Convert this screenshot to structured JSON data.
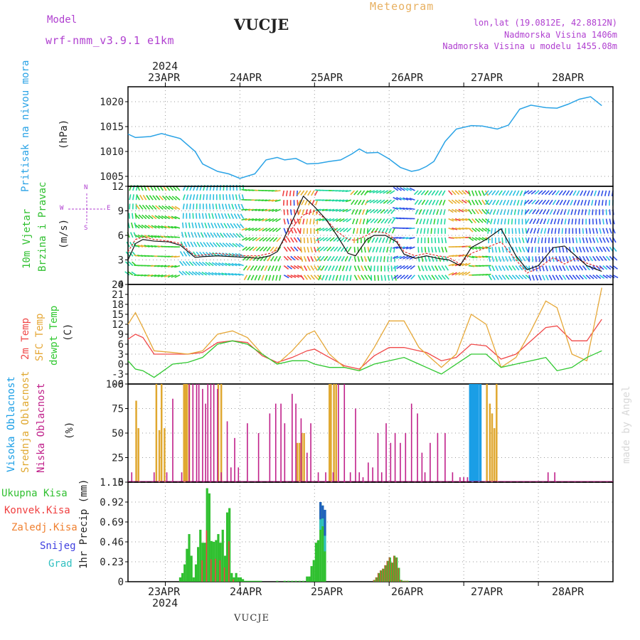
{
  "header": {
    "model_label": "Model",
    "model_name": "wrf-nmm_v3.9.1 e1km",
    "title": "VUCJE",
    "meteogram": "Meteogram",
    "lonlat": "lon,lat (19.0812E, 42.8812N)",
    "elevation": "Nadmorska Visina 1406m",
    "model_elevation": "Nadmorska Visina u modelu 1455.08m",
    "bottom_station": "VUCJE",
    "watermark": "made by Angel"
  },
  "colors": {
    "pressure": "#2aa3e6",
    "temp2m": "#f04848",
    "sfc": "#e6a838",
    "dew": "#30c830",
    "high_cloud": "#1a9ee6",
    "mid_cloud": "#e0a830",
    "low_cloud": "#c0208a",
    "precip_total": "#30c030",
    "precip_conv": "#f04040",
    "precip_frozen": "#f08030",
    "snow": "#4040e0",
    "hail": "#30c0c0",
    "magenta": "#b040d0",
    "orange": "#e8b060"
  },
  "chart_data": [
    {
      "type": "line",
      "panel": "pressure",
      "ylabel": "Pritisak na nivou mora",
      "unit": "(hPa)",
      "ylim": [
        1003,
        1023
      ],
      "yticks": [
        1005,
        1010,
        1015,
        1020
      ],
      "x_day": [
        0,
        0.1,
        0.3,
        0.45,
        0.55,
        0.7,
        0.9,
        1.0,
        1.2,
        1.35,
        1.5,
        1.7,
        1.85,
        2.0,
        2.1,
        2.25,
        2.4,
        2.55,
        2.7,
        2.85,
        3.0,
        3.1,
        3.2,
        3.35,
        3.5,
        3.65,
        3.8,
        3.9,
        4.0,
        4.1,
        4.25,
        4.4,
        4.6,
        4.75,
        4.95,
        5.1,
        5.25,
        5.4,
        5.6,
        5.75,
        5.9,
        6.05,
        6.2,
        6.35
      ],
      "values": [
        1013.5,
        1012.8,
        1013,
        1013.6,
        1013.2,
        1012.6,
        1010,
        1007.5,
        1006,
        1005.5,
        1004.6,
        1005.5,
        1008.3,
        1008.8,
        1008.3,
        1008.6,
        1007.5,
        1007.6,
        1008,
        1008.3,
        1009.5,
        1010.5,
        1009.7,
        1009.8,
        1008.5,
        1006.8,
        1006,
        1006.3,
        1007,
        1008,
        1012,
        1014.5,
        1015.2,
        1015.1,
        1014.5,
        1015.3,
        1018.5,
        1019.3,
        1018.8,
        1018.7,
        1019.5,
        1020.5,
        1021,
        1019.2
      ],
      "grid": true
    },
    {
      "type": "vector",
      "panel": "wind",
      "ylabel": [
        "10m Vjetar",
        "Brzina i Pravac"
      ],
      "unit": "(m/s)",
      "compass": [
        "N",
        "E",
        "S",
        "W"
      ],
      "ylim": [
        0,
        12
      ],
      "yticks": [
        0,
        3,
        6,
        9,
        12
      ],
      "series": [
        {
          "name": "red",
          "x_day": [
            0,
            0.1,
            0.2,
            0.35,
            0.55,
            0.7,
            0.9,
            1.0,
            1.2,
            1.4,
            1.6,
            1.75,
            1.9,
            2.0,
            2.1,
            2.25,
            2.35,
            2.5,
            2.65,
            2.8,
            2.95,
            3.05,
            3.2,
            3.3,
            3.45,
            3.6,
            3.7,
            3.85,
            4.0,
            4.15,
            4.3,
            4.45,
            4.6,
            4.8,
            5.0,
            5.2,
            5.35,
            5.5,
            5.7,
            5.85,
            6.0,
            6.15,
            6.35
          ],
          "values": [
            4,
            5.5,
            5.8,
            5.5,
            5.3,
            5,
            3.5,
            3.6,
            3.8,
            3.6,
            3.5,
            3.5,
            3.8,
            4.2,
            5.5,
            7.5,
            8.5,
            9,
            8,
            6.5,
            5.5,
            5.4,
            6,
            6.5,
            6.3,
            5.4,
            4,
            3.5,
            3.8,
            3.5,
            3.3,
            2.5,
            3.8,
            4.5,
            5.2,
            3,
            1.4,
            2,
            3.3,
            2.5,
            3.2,
            2.6,
            2
          ]
        },
        {
          "name": "black",
          "x_day": [
            0,
            0.1,
            0.2,
            0.35,
            0.55,
            0.7,
            0.9,
            1.0,
            1.2,
            1.4,
            1.6,
            1.75,
            1.9,
            2.0,
            2.1,
            2.25,
            2.35,
            2.5,
            2.65,
            2.8,
            2.95,
            3.05,
            3.2,
            3.3,
            3.45,
            3.6,
            3.7,
            3.85,
            4.0,
            4.15,
            4.3,
            4.45,
            4.6,
            4.8,
            5.0,
            5.2,
            5.35,
            5.5,
            5.7,
            5.85,
            6.0,
            6.15,
            6.35
          ],
          "values": [
            3,
            5,
            5.5,
            5.3,
            5.2,
            4.8,
            3.3,
            3.4,
            3.5,
            3.4,
            3.3,
            3.2,
            3.5,
            4,
            5.8,
            8.7,
            10.8,
            9.5,
            8,
            6,
            3.8,
            3.5,
            5.5,
            6,
            6,
            5.2,
            3.7,
            3.2,
            3.5,
            3.2,
            3,
            2.3,
            4.5,
            5.5,
            6.8,
            3.5,
            1.8,
            2.3,
            4.5,
            4.7,
            3.5,
            2.3,
            1.6
          ]
        }
      ],
      "grid": true
    },
    {
      "type": "line",
      "panel": "temperature",
      "ylabel": [
        "2m Temp",
        "SFC Temp",
        "dewpt Temp"
      ],
      "unit": "(C)",
      "ylim": [
        -6,
        24
      ],
      "yticks": [
        -6,
        -3,
        0,
        3,
        6,
        9,
        12,
        15,
        18,
        21,
        24
      ],
      "series": [
        {
          "name": "2m Temp",
          "x_day": [
            0,
            0.1,
            0.2,
            0.35,
            0.6,
            0.8,
            1.0,
            1.2,
            1.4,
            1.6,
            1.8,
            2.0,
            2.2,
            2.4,
            2.5,
            2.7,
            2.9,
            3.1,
            3.3,
            3.5,
            3.7,
            3.9,
            4.0,
            4.2,
            4.4,
            4.6,
            4.8,
            5.0,
            5.2,
            5.4,
            5.6,
            5.75,
            5.95,
            6.15,
            6.35
          ],
          "values": [
            7.5,
            9,
            8,
            3,
            3,
            3,
            3.5,
            6.5,
            7,
            6.5,
            2.5,
            0.5,
            2,
            4,
            4.5,
            2,
            -0.5,
            -1.5,
            2.5,
            5,
            5,
            4,
            3.5,
            1,
            2,
            6,
            5.5,
            1.5,
            3,
            7,
            11,
            11.5,
            7,
            7,
            13.5
          ]
        },
        {
          "name": "SFC Temp",
          "x_day": [
            0,
            0.1,
            0.2,
            0.35,
            0.6,
            0.8,
            1.0,
            1.2,
            1.4,
            1.6,
            1.8,
            2.0,
            2.2,
            2.4,
            2.5,
            2.7,
            2.9,
            3.1,
            3.3,
            3.5,
            3.7,
            3.9,
            4.0,
            4.2,
            4.4,
            4.6,
            4.8,
            5.0,
            5.2,
            5.4,
            5.6,
            5.75,
            5.95,
            6.15,
            6.35
          ],
          "values": [
            12,
            15.5,
            11,
            4,
            3.5,
            3,
            4,
            9,
            10,
            8,
            3,
            0,
            4,
            9,
            10,
            3,
            -1,
            -2,
            5,
            13,
            13,
            5,
            3,
            -1,
            3,
            15,
            12,
            -1,
            2,
            10,
            19,
            17,
            3,
            1,
            23
          ]
        },
        {
          "name": "dewpt Temp",
          "x_day": [
            0,
            0.1,
            0.2,
            0.35,
            0.6,
            0.8,
            1.0,
            1.2,
            1.4,
            1.6,
            1.8,
            2.0,
            2.2,
            2.4,
            2.5,
            2.7,
            2.9,
            3.1,
            3.3,
            3.5,
            3.7,
            3.9,
            4.0,
            4.2,
            4.4,
            4.6,
            4.8,
            5.0,
            5.2,
            5.4,
            5.6,
            5.75,
            5.95,
            6.15,
            6.35
          ],
          "values": [
            1,
            -1.5,
            -2,
            -4,
            0,
            0.5,
            2,
            6,
            7,
            6,
            3,
            0,
            1,
            1,
            0,
            -1,
            -1,
            -2,
            0,
            1,
            2,
            0,
            -1,
            -3,
            0,
            3,
            3,
            -1,
            0,
            1,
            2,
            -2,
            -1,
            2,
            4
          ]
        }
      ],
      "grid": true
    },
    {
      "type": "bar",
      "panel": "cloud",
      "ylabel": [
        "Visoka Oblacnost",
        "Srednja Oblacnost",
        "Niska Oblacnost"
      ],
      "unit": "(%)",
      "ylim": [
        0,
        100
      ],
      "yticks": [
        0,
        25,
        50,
        75,
        100
      ],
      "series": [
        {
          "name": "Srednja Oblacnost",
          "x_day": [
            0.11,
            0.14,
            0.38,
            0.42,
            0.45,
            0.49,
            0.75,
            0.77,
            0.79,
            0.82,
            1.21,
            1.25,
            2.27,
            2.3,
            2.33,
            2.36,
            2.7,
            2.72,
            2.76,
            2.79,
            4.81,
            4.85,
            4.88,
            4.91,
            4.94
          ],
          "values": [
            83,
            55,
            100,
            53,
            100,
            55,
            100,
            100,
            100,
            100,
            100,
            100,
            40,
            40,
            50,
            50,
            100,
            100,
            100,
            100,
            100,
            80,
            70,
            55,
            100
          ]
        },
        {
          "name": "Niska Oblacnost",
          "x_day": [
            0.05,
            0.35,
            0.52,
            0.6,
            0.72,
            0.82,
            0.87,
            0.92,
            0.95,
            1.0,
            1.04,
            1.07,
            1.11,
            1.15,
            1.2,
            1.25,
            1.33,
            1.38,
            1.43,
            1.48,
            1.6,
            1.75,
            1.9,
            1.98,
            2.05,
            2.1,
            2.2,
            2.25,
            2.32,
            2.4,
            2.45,
            2.55,
            2.65,
            2.75,
            2.82,
            2.9,
            2.98,
            3.05,
            3.1,
            3.15,
            3.22,
            3.28,
            3.35,
            3.4,
            3.46,
            3.52,
            3.58,
            3.65,
            3.72,
            3.8,
            3.88,
            3.94,
            3.98,
            4.05,
            4.15,
            4.25,
            4.35,
            4.45,
            4.5,
            4.55,
            4.6,
            4.64,
            5.63,
            5.72
          ],
          "values": [
            10,
            10,
            10,
            85,
            10,
            100,
            100,
            100,
            100,
            95,
            80,
            100,
            100,
            100,
            95,
            10,
            62,
            15,
            45,
            15,
            60,
            50,
            70,
            80,
            80,
            60,
            90,
            80,
            65,
            30,
            60,
            10,
            10,
            10,
            100,
            100,
            10,
            75,
            10,
            5,
            20,
            15,
            50,
            10,
            60,
            40,
            50,
            40,
            50,
            80,
            70,
            30,
            10,
            40,
            50,
            50,
            10,
            5,
            5,
            5,
            10,
            10,
            10,
            10
          ]
        },
        {
          "name": "Visoka Oblacnost",
          "x_day": [
            4.59,
            4.62,
            4.65,
            4.68,
            4.72
          ],
          "values": [
            100,
            100,
            100,
            100,
            100
          ]
        }
      ],
      "grid": true
    },
    {
      "type": "bar",
      "panel": "precip",
      "ylabel": "1hr Precip (mm)",
      "legend": [
        "Ukupna Kisa",
        "Konvek.Kisa",
        "Zaledj.Kisa",
        "Snijeg",
        "Grad"
      ],
      "ylim": [
        0,
        1.15
      ],
      "yticks": [
        0,
        0.23,
        0.46,
        0.69,
        0.92,
        1.15
      ],
      "x_day": [
        0.7,
        0.73,
        0.76,
        0.79,
        0.82,
        0.85,
        0.88,
        0.91,
        0.94,
        0.97,
        1.0,
        1.03,
        1.06,
        1.09,
        1.12,
        1.15,
        1.18,
        1.21,
        1.24,
        1.27,
        1.3,
        1.33,
        1.36,
        1.39,
        1.42,
        1.45,
        1.48,
        1.51,
        1.54,
        1.57,
        1.6,
        1.63,
        1.66,
        1.69,
        1.72,
        1.75,
        1.78,
        2.0,
        2.1,
        2.15,
        2.2,
        2.25,
        2.3,
        2.35,
        2.4,
        2.43,
        2.46,
        2.49,
        2.52,
        2.55,
        2.58,
        2.61,
        2.64,
        3.3,
        3.33,
        3.36,
        3.39,
        3.42,
        3.45,
        3.48,
        3.51,
        3.54,
        3.57,
        3.6,
        3.63,
        3.66,
        3.69,
        3.72,
        3.75
      ],
      "values": [
        0.05,
        0.1,
        0.2,
        0.38,
        0.55,
        0.3,
        0.05,
        0.2,
        0.4,
        0.6,
        0.45,
        0.45,
        1.08,
        1.02,
        0.47,
        0.46,
        0.48,
        0.55,
        0.45,
        0.6,
        0.3,
        0.8,
        0.85,
        0.1,
        0.05,
        0.1,
        0.05,
        0.05,
        0.03,
        0.01,
        0.01,
        0.01,
        0.01,
        0.01,
        0.01,
        0.01,
        0.01,
        0.01,
        0.01,
        0.01,
        0.01,
        0.01,
        0.01,
        0.01,
        0.06,
        0.06,
        0.18,
        0.25,
        0.45,
        0.48,
        0.92,
        0.88,
        0.83,
        0.02,
        0.05,
        0.1,
        0.13,
        0.15,
        0.19,
        0.24,
        0.28,
        0.22,
        0.3,
        0.28,
        0.16,
        0.02,
        0.01,
        0.01,
        0.01
      ],
      "snow_cap": [
        0,
        0,
        0,
        0,
        0,
        0,
        0,
        0,
        0,
        0,
        0,
        0,
        0,
        0,
        0,
        0,
        0,
        0,
        0,
        0,
        0,
        0,
        0,
        0,
        0,
        0,
        0,
        0,
        0,
        0,
        0,
        0,
        0,
        0,
        0,
        0,
        0,
        0,
        0,
        0,
        0,
        0,
        0,
        0,
        0,
        0,
        0,
        0,
        0,
        0,
        0.2,
        0.15,
        0.3,
        0,
        0,
        0,
        0,
        0,
        0,
        0,
        0,
        0,
        0,
        0,
        0,
        0,
        0,
        0,
        0
      ],
      "grid": true
    }
  ],
  "x_axis": {
    "top_year": "2024",
    "bottom_year": "2024",
    "day_labels": [
      "23APR",
      "24APR",
      "25APR",
      "26APR",
      "27APR",
      "28APR"
    ],
    "x_range_days": [
      0,
      6.5
    ]
  }
}
